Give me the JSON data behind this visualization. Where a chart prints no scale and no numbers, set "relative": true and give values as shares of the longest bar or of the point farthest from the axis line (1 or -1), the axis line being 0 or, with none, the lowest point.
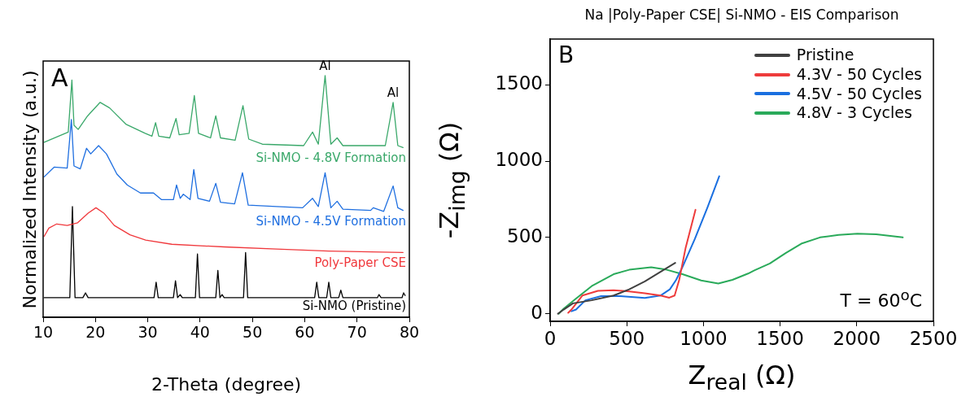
{
  "chart_data": [
    {
      "type": "line",
      "xlabel": "2-Theta (degree)",
      "ylabel": "Normalized Intensity (a.u.)",
      "relative": true,
      "xlim": [
        10,
        80
      ],
      "xticks": [
        10,
        20,
        30,
        40,
        50,
        60,
        70,
        80
      ],
      "tick_labels": "x",
      "legend": false,
      "grid": false,
      "marker": "none",
      "line_style": "solid",
      "annotations": [
        "A",
        {
          "text": "Al",
          "x": 63.9,
          "y": 1.0
        },
        {
          "text": "Al",
          "x": 76.9,
          "y": 0.889
        }
      ],
      "series": [
        {
          "name": "Si-NMO - 4.8V Formation",
          "color": "#3aa86a",
          "x": [
            10.2,
            14.8,
            15.5,
            15.9,
            16.7,
            18.5,
            20.9,
            22.7,
            25.8,
            29.5,
            30.8,
            31.5,
            32.1,
            34.2,
            35.4,
            36.0,
            37.9,
            38.9,
            39.7,
            42.0,
            43.0,
            43.9,
            46.7,
            48.2,
            49.3,
            51.9,
            59.8,
            61.5,
            62.6,
            63.9,
            65.0,
            66.2,
            67.3,
            72.8,
            75.4,
            76.9,
            77.8,
            78.8
          ],
          "values": [
            0.724,
            0.766,
            0.981,
            0.794,
            0.777,
            0.833,
            0.889,
            0.866,
            0.799,
            0.761,
            0.749,
            0.805,
            0.749,
            0.742,
            0.822,
            0.755,
            0.761,
            0.917,
            0.761,
            0.742,
            0.833,
            0.742,
            0.732,
            0.875,
            0.737,
            0.716,
            0.71,
            0.766,
            0.716,
            1.0,
            0.716,
            0.742,
            0.71,
            0.71,
            0.71,
            0.889,
            0.71,
            0.702
          ]
        },
        {
          "name": "Si-NMO - 4.5V Formation",
          "color": "#1f6fe0",
          "x": [
            10.2,
            12.1,
            14.6,
            15.4,
            15.9,
            17.1,
            18.3,
            19.1,
            20.6,
            22.1,
            24.1,
            26.1,
            28.6,
            31.1,
            32.6,
            34.9,
            35.5,
            36.2,
            36.8,
            38.1,
            38.8,
            39.6,
            41.8,
            43.0,
            43.9,
            46.6,
            48.1,
            49.2,
            54.6,
            59.6,
            61.5,
            62.6,
            63.9,
            65.0,
            66.2,
            67.3,
            72.6,
            73.1,
            75.1,
            76.9,
            77.8,
            78.8
          ],
          "values": [
            0.581,
            0.621,
            0.617,
            0.818,
            0.626,
            0.614,
            0.699,
            0.676,
            0.71,
            0.676,
            0.592,
            0.547,
            0.514,
            0.514,
            0.487,
            0.487,
            0.547,
            0.492,
            0.509,
            0.487,
            0.611,
            0.492,
            0.48,
            0.554,
            0.476,
            0.469,
            0.598,
            0.464,
            0.458,
            0.453,
            0.492,
            0.458,
            0.598,
            0.453,
            0.48,
            0.447,
            0.442,
            0.453,
            0.438,
            0.543,
            0.453,
            0.442
          ]
        },
        {
          "name": "Poly-Paper CSE",
          "color": "#f0383c",
          "x": [
            10.2,
            11.1,
            12.6,
            14.6,
            16.6,
            18.6,
            20.1,
            21.6,
            23.6,
            26.6,
            29.6,
            34.6,
            44.6,
            54.6,
            64.6,
            78.8
          ],
          "values": [
            0.335,
            0.369,
            0.386,
            0.38,
            0.391,
            0.431,
            0.453,
            0.431,
            0.38,
            0.341,
            0.319,
            0.302,
            0.291,
            0.282,
            0.274,
            0.268
          ]
        },
        {
          "name": "Si-NMO (Pristine)",
          "color": "#000000",
          "x": [
            10.2,
            15.1,
            15.6,
            16.1,
            17.6,
            18.1,
            18.6,
            31.2,
            31.6,
            32.0,
            34.9,
            35.3,
            35.7,
            36.2,
            36.6,
            39.1,
            39.5,
            39.9,
            43.0,
            43.4,
            43.8,
            44.2,
            44.6,
            48.3,
            48.7,
            49.1,
            61.9,
            62.3,
            62.7,
            64.2,
            64.6,
            65.0,
            66.5,
            66.9,
            67.3,
            73.9,
            74.2,
            74.6,
            78.6,
            78.9,
            79.2
          ],
          "values": [
            0.081,
            0.081,
            0.458,
            0.081,
            0.081,
            0.101,
            0.081,
            0.081,
            0.145,
            0.081,
            0.081,
            0.151,
            0.081,
            0.094,
            0.081,
            0.081,
            0.262,
            0.081,
            0.081,
            0.194,
            0.081,
            0.094,
            0.081,
            0.081,
            0.268,
            0.081,
            0.081,
            0.145,
            0.081,
            0.081,
            0.145,
            0.081,
            0.081,
            0.112,
            0.081,
            0.081,
            0.094,
            0.081,
            0.081,
            0.101,
            0.09
          ]
        }
      ]
    },
    {
      "type": "line",
      "title": "Na |Poly-Paper CSE| Si-NMO - EIS Comparison",
      "xlabel": "Z$_{real}$ (Ω)",
      "ylabel": "-Z$_{img}$ (Ω)",
      "xlim": [
        0,
        2500
      ],
      "xticks": [
        0,
        500,
        1000,
        1500,
        2000,
        2500
      ],
      "ylim": [
        -50,
        1800
      ],
      "yticks": [
        0,
        500,
        1000,
        1500
      ],
      "legend": "top right",
      "grid": false,
      "marker": "none",
      "line_style": "solid",
      "annotations": [
        "B",
        "T = 60$^{o}$C"
      ],
      "series": [
        {
          "name": "Pristine",
          "color": "#404040",
          "x": [
            51,
            88,
            149,
            271,
            414,
            516,
            618,
            720,
            816
          ],
          "values": [
            0,
            27,
            68,
            88,
            119,
            160,
            212,
            274,
            333
          ]
        },
        {
          "name": "4.3V - 50 Cycles",
          "color": "#ee3b3b",
          "x": [
            118,
            139,
            210,
            312,
            414,
            516,
            618,
            720,
            777,
            812,
            842,
            883,
            948
          ],
          "values": [
            6,
            27,
            119,
            150,
            154,
            146,
            134,
            119,
            105,
            119,
            222,
            428,
            681
          ]
        },
        {
          "name": "4.5V - 50 Cycles",
          "color": "#1a6fe0",
          "x": [
            139,
            169,
            230,
            332,
            455,
            618,
            720,
            781,
            822,
            863,
            944,
            1026,
            1103
          ],
          "values": [
            16,
            27,
            88,
            115,
            115,
            103,
            119,
            160,
            222,
            305,
            490,
            696,
            901
          ]
        },
        {
          "name": "4.8V - 3 Cycles",
          "color": "#2aaa5a",
          "x": [
            57,
            88,
            169,
            271,
            414,
            516,
            659,
            761,
            863,
            985,
            1097,
            1189,
            1291,
            1332,
            1433,
            1536,
            1638,
            1760,
            1882,
            2004,
            2127,
            2300
          ],
          "values": [
            0,
            33,
            99,
            181,
            259,
            288,
            305,
            288,
            259,
            218,
            198,
            222,
            263,
            284,
            329,
            397,
            459,
            500,
            516,
            525,
            521,
            500
          ]
        }
      ]
    }
  ]
}
